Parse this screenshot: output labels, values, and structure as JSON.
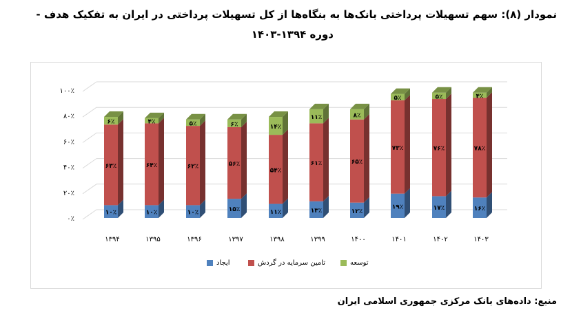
{
  "title": {
    "line1": "نمودار (۸): سهم تسهیلات پرداختی بانک‌ها به بنگاه‌ها از کل تسهیلات پرداختی در ایران به تفکیک هدف -",
    "line2": "دوره ۱۳۹۴-۱۴۰۳"
  },
  "source": "منبع: داده‌های بانک مرکزی جمهوری اسلامی ایران",
  "legend": {
    "items": [
      {
        "label": "ایجاد",
        "color": "#4f81bd"
      },
      {
        "label": "تامین سرمایه در گردش",
        "color": "#c0504d"
      },
      {
        "label": "توسعه",
        "color": "#9bbb59"
      }
    ]
  },
  "axis": {
    "y_ticks": [
      "۰٪",
      "۲۰٪",
      "۴۰٪",
      "۶۰٪",
      "۸۰٪",
      "۱۰۰٪"
    ]
  },
  "chart_data": {
    "type": "bar",
    "stacked": true,
    "title": "نمودار (۸): سهم تسهیلات پرداختی بانک‌ها به بنگاه‌ها از کل تسهیلات پرداختی در ایران به تفکیک هدف - دوره ۱۳۹۴-۱۴۰۳",
    "categories": [
      "۱۳۹۴",
      "۱۳۹۵",
      "۱۳۹۶",
      "۱۳۹۷",
      "۱۳۹۸",
      "۱۳۹۹",
      "۱۴۰۰",
      "۱۴۰۱",
      "۱۴۰۲",
      "۱۴۰۳"
    ],
    "series": [
      {
        "name": "ایجاد",
        "color": "#4f81bd",
        "values": [
          10,
          10,
          10,
          15,
          11,
          13,
          12,
          19,
          17,
          16
        ]
      },
      {
        "name": "تامین سرمایه در گردش",
        "color": "#c0504d",
        "values": [
          63,
          64,
          62,
          56,
          54,
          61,
          65,
          73,
          76,
          78
        ]
      },
      {
        "name": "توسعه",
        "color": "#9bbb59",
        "values": [
          6,
          4,
          5,
          6,
          14,
          11,
          8,
          5,
          5,
          4
        ]
      }
    ],
    "xlabel": "",
    "ylabel": "",
    "ylim": [
      0,
      100
    ],
    "y_ticks": [
      0,
      20,
      40,
      60,
      80,
      100
    ],
    "y_tick_format": "percent",
    "grid": true,
    "legend_position": "bottom",
    "style": "3d-column"
  }
}
